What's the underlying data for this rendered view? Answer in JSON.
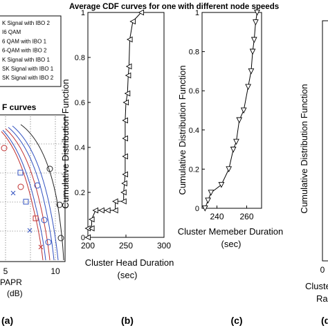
{
  "figure": {
    "title": "Average CDF curves for one with different node speeds"
  },
  "panel_a": {
    "title": "F curves",
    "legend": [
      "K Signal with IBO 2",
      "I6 QAM",
      "6 QAM with IBO 1",
      "6-QAM with IBO 2",
      "K Signal with IBO 1",
      "SK Signal with IBO 1",
      "SK Signal with IBO 2"
    ],
    "xticks": [
      "5",
      "10"
    ],
    "xlabel": "PAPR",
    "xunit": "(dB)",
    "label": "(a)"
  },
  "chart_data": [
    {
      "type": "line",
      "panel": "(b)",
      "xlabel": "Cluster Head Duration",
      "xunit": "(sec)",
      "ylabel": "Cumulative Distribution Function",
      "xlim": [
        200,
        300
      ],
      "ylim": [
        0,
        1
      ],
      "xticks": [
        200,
        250,
        300
      ],
      "yticks": [
        0,
        0.2,
        0.4,
        0.6,
        0.8,
        1
      ],
      "marker": "left-triangle",
      "series": [
        {
          "x": [
            200,
            200,
            205,
            205,
            210,
            218,
            226,
            236,
            236,
            247,
            247,
            248,
            249,
            249,
            249,
            249,
            250,
            252,
            253,
            254,
            255,
            259,
            270
          ],
          "y": [
            0,
            0.04,
            0.04,
            0.08,
            0.12,
            0.12,
            0.12,
            0.12,
            0.16,
            0.16,
            0.2,
            0.24,
            0.28,
            0.36,
            0.44,
            0.52,
            0.6,
            0.64,
            0.72,
            0.76,
            0.88,
            0.96,
            1.0
          ]
        }
      ]
    },
    {
      "type": "line",
      "panel": "(c)",
      "xlabel": "Cluster Memeber Duration",
      "xunit": "(sec)",
      "ylabel": "Cumulative Distribution Function",
      "xlim": [
        230,
        270
      ],
      "ylim": [
        0,
        1
      ],
      "xticks": [
        240,
        260
      ],
      "yticks": [
        0,
        0.2,
        0.4,
        0.6,
        0.8,
        1
      ],
      "marker": "down-triangle",
      "series": [
        {
          "x": [
            232,
            234,
            236,
            243,
            248,
            251,
            253,
            255,
            258,
            261,
            263,
            264,
            265,
            266,
            267
          ],
          "y": [
            0,
            0.04,
            0.08,
            0.12,
            0.2,
            0.3,
            0.34,
            0.45,
            0.5,
            0.62,
            0.7,
            0.8,
            0.86,
            0.95,
            1.0
          ]
        }
      ]
    }
  ],
  "panel_d": {
    "tick": "0",
    "xlabel_fragment": "Cluste",
    "xlabel_fragment2": "Ra",
    "label": "(d)"
  },
  "panel_labels": {
    "b": "(b)",
    "c": "(c)"
  }
}
